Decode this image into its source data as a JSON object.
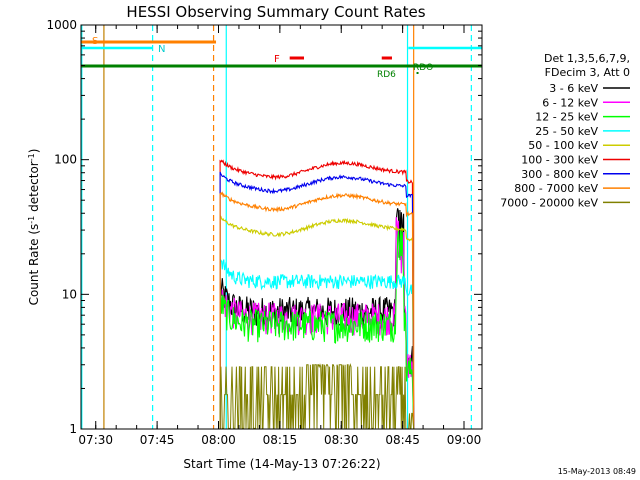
{
  "chart_data": {
    "type": "line",
    "title": "HESSI Observing Summary Count Rates",
    "xlabel": "Start Time (14-May-13 07:26:22)",
    "ylabel_main": "Count Rate (s",
    "ylabel_sup1": "-1",
    "ylabel_mid": " detector",
    "ylabel_sup2": "-1",
    "ylabel_end": ")",
    "yscale": "log",
    "ylim": [
      1,
      1000
    ],
    "xlim_minutes_from_0726": [
      0,
      98
    ],
    "x_ticks": [
      {
        "label": "07:30",
        "min": 3.6
      },
      {
        "label": "07:45",
        "min": 18.6
      },
      {
        "label": "08:00",
        "min": 33.6
      },
      {
        "label": "08:15",
        "min": 48.6
      },
      {
        "label": "08:30",
        "min": 63.6
      },
      {
        "label": "08:45",
        "min": 78.6
      },
      {
        "label": "09:00",
        "min": 93.6
      }
    ],
    "y_ticks": [
      {
        "label": "1",
        "value": 1
      },
      {
        "label": "10",
        "value": 10
      },
      {
        "label": "100",
        "value": 100
      },
      {
        "label": "1000",
        "value": 1000
      }
    ],
    "legend": {
      "header1": "Det 1,3,5,6,7,9,",
      "header2": "FDecim 3, Att 0",
      "placement": "right"
    },
    "series": [
      {
        "name": "3 - 6 keV",
        "color": "#000000",
        "level": 7.5
      },
      {
        "name": "6 - 12 keV",
        "color": "#ff00ff",
        "level": 6.8
      },
      {
        "name": "12 - 25 keV",
        "color": "#00ff00",
        "level": 6.0
      },
      {
        "name": "25 - 50 keV",
        "color": "#00ffff",
        "level": 12.5
      },
      {
        "name": "50 - 100 keV",
        "color": "#cccc00",
        "level": 30
      },
      {
        "name": "100 - 300 keV",
        "color": "#ee0000",
        "level": 80
      },
      {
        "name": "300 - 800 keV",
        "color": "#0000ee",
        "level": 63
      },
      {
        "name": "800 - 7000 keV",
        "color": "#ff8000",
        "level": 46
      },
      {
        "name": "7000 - 20000 keV",
        "color": "#808000",
        "level": 1.8
      }
    ],
    "data_start_min": 34,
    "data_end_min": 81,
    "annotations": {
      "S_label": "S",
      "N_label": "N",
      "F_label": "F",
      "RD6_label": "RD6",
      "RDO_label": "RDO"
    },
    "markers": {
      "saa_bar": {
        "label": "S",
        "start_min": 0,
        "end_min": 33,
        "color": "#ff8000"
      },
      "night_bars": [
        {
          "start_min": 0,
          "end_min": 17.5,
          "color": "#00ffff"
        },
        {
          "start_min": 80,
          "end_min": 98,
          "color": "#00ffff"
        }
      ],
      "flare_bars": [
        {
          "start_min": 51,
          "end_min": 54.5,
          "color": "#ee0000"
        },
        {
          "start_min": 73.5,
          "end_min": 76,
          "color": "#ee0000"
        }
      ],
      "decimation_bar": {
        "start_min": 0,
        "end_min": 98,
        "color": "#008000"
      },
      "vlines": [
        {
          "min": 0.2,
          "color": "#00ffff",
          "style": "solid"
        },
        {
          "min": 5.6,
          "color": "#c08000",
          "style": "solid"
        },
        {
          "min": 17.5,
          "color": "#00ffff",
          "style": "dashed"
        },
        {
          "min": 32.4,
          "color": "#ff8000",
          "style": "dashed"
        },
        {
          "min": 35.5,
          "color": "#00ffff",
          "style": "solid"
        },
        {
          "min": 79.8,
          "color": "#00ffff",
          "style": "solid"
        },
        {
          "min": 81.3,
          "color": "#ff8000",
          "style": "solid"
        },
        {
          "min": 95.4,
          "color": "#00ffff",
          "style": "dashed"
        }
      ]
    }
  },
  "footer": {
    "timestamp": "15-May-2013 08:49"
  }
}
